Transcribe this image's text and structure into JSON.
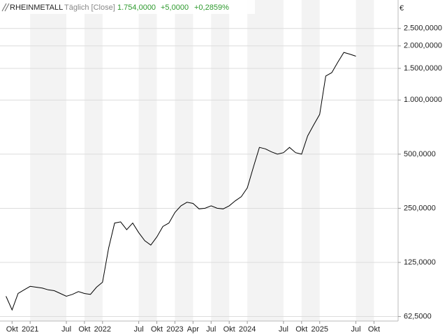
{
  "chart_data": {
    "type": "line",
    "title": "RHEINMETALL",
    "subtitle": "Täglich [Close]",
    "last_price": "1.754,0000",
    "change": "+5,0000",
    "change_pct": "+0,2859%",
    "y_unit": "€",
    "log_scale": true,
    "grid": true,
    "color": "#000000",
    "x": [
      "2020-09",
      "2020-10",
      "2020-11",
      "2020-12",
      "2021-01",
      "2021-02",
      "2021-03",
      "2021-04",
      "2021-05",
      "2021-06",
      "2021-07",
      "2021-08",
      "2021-09",
      "2021-10",
      "2021-11",
      "2021-12",
      "2022-01",
      "2022-02",
      "2022-03",
      "2022-04",
      "2022-05",
      "2022-06",
      "2022-07",
      "2022-08",
      "2022-09",
      "2022-10",
      "2022-11",
      "2022-12",
      "2023-01",
      "2023-02",
      "2023-03",
      "2023-04",
      "2023-05",
      "2023-06",
      "2023-07",
      "2023-08",
      "2023-09",
      "2023-10",
      "2023-11",
      "2023-12",
      "2024-01",
      "2024-02",
      "2024-03",
      "2024-04",
      "2024-05",
      "2024-06",
      "2024-07",
      "2024-08",
      "2024-09",
      "2024-10",
      "2024-11",
      "2024-12",
      "2025-01",
      "2025-02",
      "2025-03",
      "2025-04",
      "2025-05",
      "2025-06",
      "2025-07"
    ],
    "values": [
      81,
      68,
      84,
      88,
      92,
      91,
      90,
      88,
      87,
      84,
      81,
      83,
      86,
      84,
      83,
      91,
      97,
      150,
      207,
      210,
      190,
      207,
      183,
      165,
      156,
      173,
      198,
      207,
      237,
      258,
      270,
      266,
      248,
      250,
      258,
      250,
      248,
      258,
      275,
      290,
      325,
      422,
      545,
      535,
      515,
      500,
      510,
      545,
      510,
      500,
      632,
      727,
      832,
      1360,
      1420,
      1620,
      1840,
      1800,
      1754
    ],
    "xlim": [
      "2020-08",
      "2026-02"
    ],
    "xticks": [
      {
        "value": "2020-10",
        "label": "Okt"
      },
      {
        "value": "2021-01",
        "label": "2021"
      },
      {
        "value": "2021-07",
        "label": "Jul"
      },
      {
        "value": "2021-10",
        "label": "Okt"
      },
      {
        "value": "2022-01",
        "label": "2022"
      },
      {
        "value": "2022-07",
        "label": "Jul"
      },
      {
        "value": "2022-10",
        "label": "Okt"
      },
      {
        "value": "2023-01",
        "label": "2023"
      },
      {
        "value": "2023-04",
        "label": "Apr"
      },
      {
        "value": "2023-07",
        "label": "Jul"
      },
      {
        "value": "2023-10",
        "label": "Okt"
      },
      {
        "value": "2024-01",
        "label": "2024"
      },
      {
        "value": "2024-07",
        "label": "Jul"
      },
      {
        "value": "2024-10",
        "label": "Okt"
      },
      {
        "value": "2025-01",
        "label": "2025"
      },
      {
        "value": "2025-07",
        "label": "Jul"
      },
      {
        "value": "2025-10",
        "label": "Okt"
      }
    ],
    "ylim": [
      59,
      3600
    ],
    "yticks": [
      {
        "value": 62.5,
        "label": "62,5000"
      },
      {
        "value": 125,
        "label": "125,0000"
      },
      {
        "value": 250,
        "label": "250,0000"
      },
      {
        "value": 500,
        "label": "500,0000"
      },
      {
        "value": 1000,
        "label": "1.000,0000"
      },
      {
        "value": 1500,
        "label": "1.500,0000"
      },
      {
        "value": 2000,
        "label": "2.000,0000"
      },
      {
        "value": 2500,
        "label": "2.500,0000"
      }
    ]
  }
}
